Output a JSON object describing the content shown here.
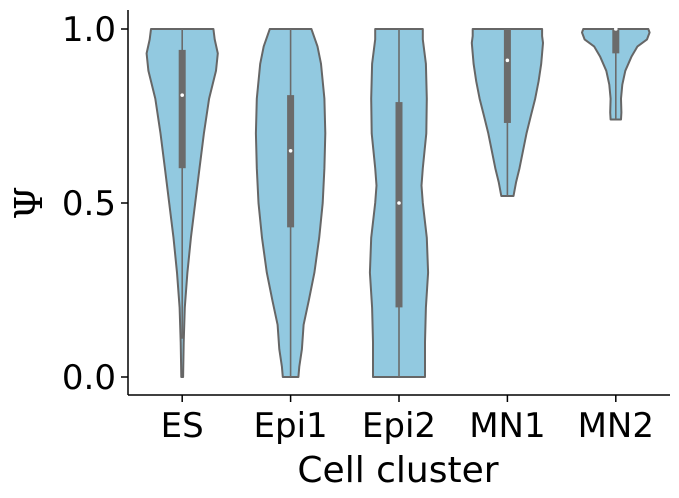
{
  "chart_data": {
    "type": "violin",
    "xlabel": "Cell cluster",
    "ylabel": "Ψ",
    "ylim": [
      -0.05,
      1.05
    ],
    "yticks": [
      0.0,
      0.5,
      1.0
    ],
    "ytick_labels": [
      "0.0",
      "0.5",
      "1.0"
    ],
    "grid": false,
    "categories": [
      "ES",
      "Epi1",
      "Epi2",
      "MN1",
      "MN2"
    ],
    "series": [
      {
        "category": "ES",
        "min": 0.0,
        "max": 1.0,
        "q1": 0.6,
        "median": 0.81,
        "q3": 0.94,
        "whisker_low": 0.11,
        "whisker_high": 1.0,
        "profile": [
          [
            0.0,
            0.02
          ],
          [
            0.1,
            0.035
          ],
          [
            0.2,
            0.06
          ],
          [
            0.3,
            0.12
          ],
          [
            0.4,
            0.2
          ],
          [
            0.5,
            0.3
          ],
          [
            0.6,
            0.4
          ],
          [
            0.7,
            0.5
          ],
          [
            0.8,
            0.62
          ],
          [
            0.88,
            0.78
          ],
          [
            0.93,
            0.82
          ],
          [
            0.97,
            0.75
          ],
          [
            1.0,
            0.72
          ]
        ]
      },
      {
        "category": "Epi1",
        "min": 0.0,
        "max": 1.0,
        "q1": 0.43,
        "median": 0.65,
        "q3": 0.81,
        "whisker_low": 0.0,
        "whisker_high": 1.0,
        "profile": [
          [
            0.0,
            0.18
          ],
          [
            0.03,
            0.2
          ],
          [
            0.08,
            0.26
          ],
          [
            0.15,
            0.3
          ],
          [
            0.22,
            0.42
          ],
          [
            0.3,
            0.55
          ],
          [
            0.4,
            0.66
          ],
          [
            0.5,
            0.74
          ],
          [
            0.6,
            0.78
          ],
          [
            0.7,
            0.8
          ],
          [
            0.8,
            0.78
          ],
          [
            0.9,
            0.7
          ],
          [
            0.95,
            0.62
          ],
          [
            1.0,
            0.48
          ]
        ]
      },
      {
        "category": "Epi2",
        "min": 0.0,
        "max": 1.0,
        "q1": 0.2,
        "median": 0.5,
        "q3": 0.79,
        "whisker_low": 0.0,
        "whisker_high": 1.0,
        "profile": [
          [
            0.0,
            0.6
          ],
          [
            0.05,
            0.6
          ],
          [
            0.1,
            0.6
          ],
          [
            0.2,
            0.62
          ],
          [
            0.3,
            0.67
          ],
          [
            0.4,
            0.64
          ],
          [
            0.5,
            0.55
          ],
          [
            0.55,
            0.52
          ],
          [
            0.6,
            0.55
          ],
          [
            0.7,
            0.63
          ],
          [
            0.8,
            0.64
          ],
          [
            0.9,
            0.62
          ],
          [
            0.97,
            0.55
          ],
          [
            1.0,
            0.55
          ]
        ]
      },
      {
        "category": "MN1",
        "min": 0.52,
        "max": 1.0,
        "q1": 0.73,
        "median": 0.91,
        "q3": 1.0,
        "whisker_low": 0.52,
        "whisker_high": 1.0,
        "profile": [
          [
            0.52,
            0.14
          ],
          [
            0.56,
            0.2
          ],
          [
            0.6,
            0.28
          ],
          [
            0.65,
            0.36
          ],
          [
            0.7,
            0.44
          ],
          [
            0.75,
            0.54
          ],
          [
            0.8,
            0.64
          ],
          [
            0.85,
            0.72
          ],
          [
            0.9,
            0.78
          ],
          [
            0.93,
            0.8
          ],
          [
            0.96,
            0.82
          ],
          [
            0.98,
            0.8
          ],
          [
            1.0,
            0.8
          ]
        ]
      },
      {
        "category": "MN2",
        "min": 0.74,
        "max": 1.0,
        "q1": 0.93,
        "median": 1.0,
        "q3": 1.0,
        "whisker_low": 0.74,
        "whisker_high": 1.0,
        "profile": [
          [
            0.74,
            0.12
          ],
          [
            0.76,
            0.13
          ],
          [
            0.8,
            0.12
          ],
          [
            0.84,
            0.15
          ],
          [
            0.88,
            0.22
          ],
          [
            0.92,
            0.36
          ],
          [
            0.95,
            0.5
          ],
          [
            0.97,
            0.72
          ],
          [
            0.99,
            0.78
          ],
          [
            1.0,
            0.75
          ]
        ]
      }
    ],
    "colors": {
      "violin_fill": "#92c9e0",
      "violin_edge": "#666666",
      "box": "#6b6b6b",
      "median_dot": "#ffffff",
      "axis": "#000000"
    }
  }
}
